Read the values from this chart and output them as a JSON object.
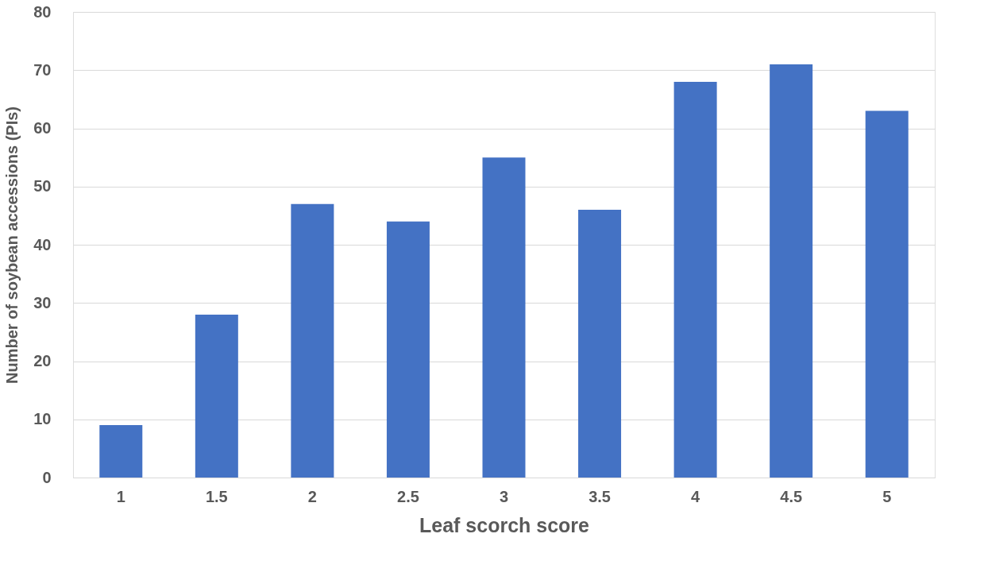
{
  "chart_data": {
    "type": "bar",
    "xlabel": "Leaf scorch score",
    "ylabel": "Number of soybean accessions (PIs)",
    "categories": [
      "1",
      "1.5",
      "2",
      "2.5",
      "3",
      "3.5",
      "4",
      "4.5",
      "5"
    ],
    "values": [
      9,
      28,
      47,
      44,
      55,
      46,
      68,
      71,
      63
    ],
    "color": "#4472c4",
    "ylim": [
      0,
      80
    ],
    "yticks": [
      0,
      10,
      20,
      30,
      40,
      50,
      60,
      70,
      80
    ],
    "grid": "y"
  }
}
